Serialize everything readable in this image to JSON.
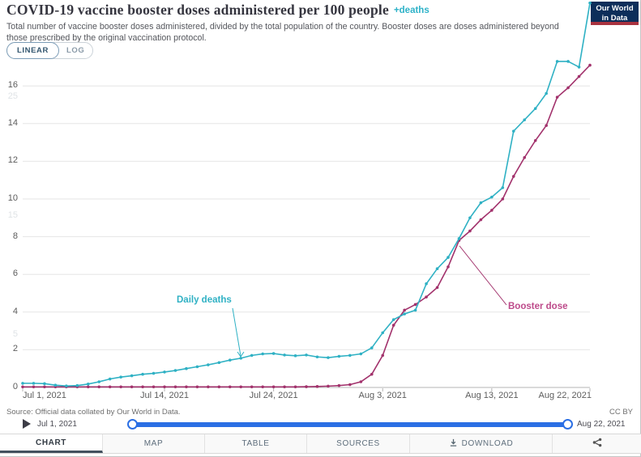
{
  "header": {
    "title": "COVID-19 vaccine booster doses administered per 100 people",
    "title_suffix": "+deaths",
    "subtitle": "Total number of vaccine booster doses administered, divided by the total population of the country. Booster doses are doses administered beyond those prescribed by the original vaccination protocol."
  },
  "controls": {
    "scale_options": [
      {
        "label": "LINEAR",
        "active": true
      },
      {
        "label": "LOG",
        "active": false
      }
    ]
  },
  "logo": {
    "line1": "Our World",
    "line2": "in Data"
  },
  "chart_data": {
    "type": "line",
    "title": "COVID-19 vaccine booster doses administered per 100 people +deaths",
    "x": [
      "Jul 1",
      "Jul 2",
      "Jul 3",
      "Jul 4",
      "Jul 5",
      "Jul 6",
      "Jul 7",
      "Jul 8",
      "Jul 9",
      "Jul 10",
      "Jul 11",
      "Jul 12",
      "Jul 13",
      "Jul 14",
      "Jul 15",
      "Jul 16",
      "Jul 17",
      "Jul 18",
      "Jul 19",
      "Jul 20",
      "Jul 21",
      "Jul 22",
      "Jul 23",
      "Jul 24",
      "Jul 25",
      "Jul 26",
      "Jul 27",
      "Jul 28",
      "Jul 29",
      "Jul 30",
      "Jul 31",
      "Aug 1",
      "Aug 2",
      "Aug 3",
      "Aug 4",
      "Aug 5",
      "Aug 6",
      "Aug 7",
      "Aug 8",
      "Aug 9",
      "Aug 10",
      "Aug 11",
      "Aug 12",
      "Aug 13",
      "Aug 14",
      "Aug 15",
      "Aug 16",
      "Aug 17",
      "Aug 18",
      "Aug 19",
      "Aug 20",
      "Aug 21",
      "Aug 22"
    ],
    "series": [
      {
        "name": "Booster dose",
        "color": "#a2326c",
        "label_color": "#bd4a8a",
        "values": [
          0.03,
          0.03,
          0.03,
          0.03,
          0.03,
          0.03,
          0.03,
          0.03,
          0.03,
          0.03,
          0.03,
          0.03,
          0.03,
          0.03,
          0.03,
          0.03,
          0.03,
          0.03,
          0.03,
          0.03,
          0.03,
          0.03,
          0.03,
          0.03,
          0.03,
          0.03,
          0.04,
          0.05,
          0.07,
          0.1,
          0.15,
          0.3,
          0.7,
          1.7,
          3.3,
          4.1,
          4.4,
          4.8,
          5.3,
          6.4,
          7.8,
          8.3,
          8.9,
          9.4,
          10.0,
          11.2,
          12.2,
          13.1,
          13.9,
          15.4,
          15.9,
          16.5,
          17.1
        ]
      },
      {
        "name": "Daily deaths",
        "color": "#2fb1c4",
        "label_color": "#2fb1c4",
        "values": [
          0.22,
          0.22,
          0.2,
          0.12,
          0.08,
          0.1,
          0.18,
          0.3,
          0.45,
          0.55,
          0.62,
          0.7,
          0.75,
          0.82,
          0.9,
          1.0,
          1.1,
          1.2,
          1.32,
          1.45,
          1.55,
          1.7,
          1.78,
          1.8,
          1.72,
          1.68,
          1.72,
          1.62,
          1.58,
          1.65,
          1.7,
          1.78,
          2.1,
          2.9,
          3.6,
          3.9,
          4.1,
          5.5,
          6.3,
          6.9,
          7.9,
          9.0,
          9.8,
          10.1,
          10.6,
          13.6,
          14.2,
          14.8,
          15.6,
          17.3,
          17.3,
          17.0,
          20.4
        ]
      }
    ],
    "y_axis": {
      "ticks": [
        0,
        2,
        4,
        6,
        8,
        10,
        12,
        14,
        16
      ],
      "range": [
        0,
        16
      ]
    },
    "y_axis_secondary": {
      "ticks": [
        5,
        15,
        25
      ],
      "faint": true
    },
    "x_ticks": [
      "Jul 1, 2021",
      "Jul 14, 2021",
      "Jul 24, 2021",
      "Aug 3, 2021",
      "Aug 13, 2021",
      "Aug 22, 2021"
    ],
    "x_tick_days": [
      0,
      13,
      23,
      33,
      43,
      52
    ],
    "grid": true,
    "legend_position": "inline-annotations",
    "annotations": [
      {
        "text": "Daily deaths"
      },
      {
        "text": "Booster dose"
      }
    ]
  },
  "footer": {
    "source": "Source: Official data collated by Our World in Data.",
    "license": "CC BY",
    "timeline": {
      "start": "Jul 1, 2021",
      "end": "Aug 22, 2021"
    },
    "tabs": [
      {
        "label": "CHART",
        "active": true
      },
      {
        "label": "MAP",
        "active": false
      },
      {
        "label": "TABLE",
        "active": false
      },
      {
        "label": "SOURCES",
        "active": false
      },
      {
        "label": "DOWNLOAD",
        "active": false,
        "icon": "download-icon"
      },
      {
        "label": "",
        "active": false,
        "icon": "share-icon"
      }
    ]
  }
}
